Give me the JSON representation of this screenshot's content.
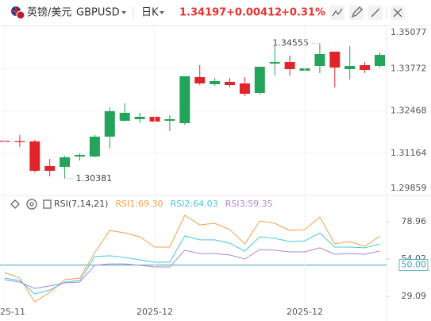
{
  "header": {
    "symbol_name": "英镑/美元",
    "symbol": "GBPUSD",
    "period": "日K",
    "price": "1.34197",
    "change": "+0.00412",
    "change_percent": "+0.31%"
  },
  "chart_data": [
    {
      "type": "candlestick",
      "up_color": "#22a45a",
      "down_color": "#e0252a",
      "grid": true,
      "open": [
        1.3155,
        1.3154,
        1.31531,
        1.30772,
        1.30748,
        1.31066,
        1.31066,
        1.31678,
        1.32167,
        1.32216,
        1.3229,
        1.32167,
        1.32094,
        1.33513,
        1.33293,
        1.33366,
        1.33317,
        1.33024,
        1.33929,
        1.33978,
        1.33709,
        1.33856,
        1.34296,
        1.33758,
        1.3388,
        1.33856
      ],
      "high": [
        1.31972,
        1.31727,
        1.3158,
        1.30993,
        1.31091,
        1.31164,
        1.31727,
        1.32583,
        1.32706,
        1.32412,
        1.32755,
        1.32339,
        1.33538,
        1.3388,
        1.33489,
        1.33489,
        1.33513,
        1.33831,
        1.34467,
        1.34174,
        1.33954,
        1.34555,
        1.34296,
        1.34467,
        1.33978,
        1.34272
      ],
      "low": [
        1.3136,
        1.3136,
        1.30577,
        1.30454,
        1.30381,
        1.30944,
        1.31042,
        1.31311,
        1.32143,
        1.32094,
        1.32094,
        1.31849,
        1.32045,
        1.33268,
        1.33244,
        1.33195,
        1.32926,
        1.32975,
        1.33562,
        1.33562,
        1.33611,
        1.33635,
        1.33195,
        1.3344,
        1.33635,
        1.33807
      ],
      "close": [
        1.31531,
        1.31531,
        1.30626,
        1.30626,
        1.31042,
        1.31115,
        1.31678,
        1.32461,
        1.32412,
        1.3229,
        1.32143,
        1.32216,
        1.33538,
        1.33317,
        1.33391,
        1.33268,
        1.32999,
        1.33831,
        1.33978,
        1.33758,
        1.33782,
        1.34223,
        1.33807,
        1.33856,
        1.33733,
        1.34197
      ],
      "ylim": [
        1.29859,
        1.35077
      ],
      "yticks": [
        1.35077,
        1.33772,
        1.32468,
        1.31164,
        1.29859
      ]
    },
    {
      "type": "line",
      "title": "RSI(7,14,21)",
      "categories": [
        "25-11",
        null,
        null,
        null,
        null,
        null,
        null,
        null,
        null,
        null,
        "2025-12",
        null,
        null,
        null,
        null,
        null,
        null,
        null,
        null,
        null,
        "2025-12",
        null,
        null,
        null,
        null,
        null
      ],
      "series": [
        {
          "name": "RSI1:69.30",
          "color": "#f5a04a",
          "values": [
            45.0,
            41.3,
            25.4,
            31.8,
            40.2,
            41.3,
            58.3,
            73.1,
            71.5,
            68.9,
            62.0,
            62.0,
            83.2,
            76.8,
            77.9,
            73.7,
            64.1,
            79.5,
            77.9,
            73.1,
            73.7,
            82.1,
            64.1,
            65.7,
            62.5,
            69.3
          ]
        },
        {
          "name": "RSI2:64.03",
          "color": "#4cc8de",
          "values": [
            41.3,
            39.7,
            30.7,
            33.3,
            38.6,
            39.7,
            55.6,
            56.2,
            55.1,
            53.5,
            51.9,
            51.9,
            69.4,
            66.8,
            66.8,
            64.6,
            59.3,
            68.9,
            67.8,
            65.7,
            66.2,
            71.5,
            62.0,
            62.0,
            61.5,
            64.03
          ]
        },
        {
          "name": "RSI3:59.35",
          "color": "#a58bd8",
          "values": [
            40.2,
            38.6,
            34.4,
            36.0,
            38.1,
            38.6,
            49.8,
            50.8,
            50.8,
            49.8,
            48.7,
            48.7,
            59.9,
            57.7,
            57.7,
            56.7,
            54.0,
            60.4,
            59.9,
            58.8,
            58.8,
            61.5,
            57.2,
            57.7,
            57.2,
            59.35
          ]
        }
      ],
      "ylim": [
        22.7,
        86.4
      ],
      "yticks": [
        78.96,
        54.02,
        29.09
      ],
      "reference_line": {
        "value": 50,
        "label": "50.00",
        "color": "#3aa6b9"
      }
    }
  ]
}
